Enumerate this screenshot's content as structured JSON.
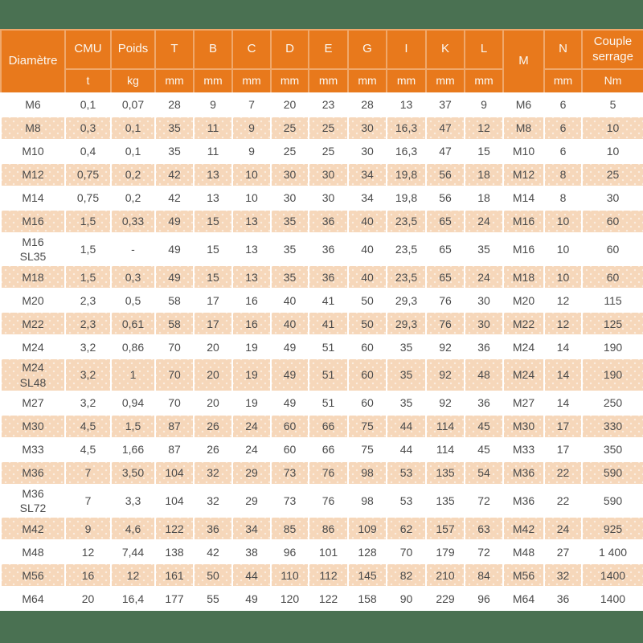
{
  "theme": {
    "band_bg": "#4A7152",
    "header_bg": "#E8791C",
    "header_divider": "#F0A86B",
    "header_text": "#FBF7F1",
    "row_bg": "#FFFFFF",
    "row_alt_bg": "#F6D7BA",
    "body_text": "#4A4A4A"
  },
  "table": {
    "columns": [
      {
        "label": "Diamètre",
        "unit": ""
      },
      {
        "label": "CMU",
        "unit": "t"
      },
      {
        "label": "Poids",
        "unit": "kg"
      },
      {
        "label": "T",
        "unit": "mm"
      },
      {
        "label": "B",
        "unit": "mm"
      },
      {
        "label": "C",
        "unit": "mm"
      },
      {
        "label": "D",
        "unit": "mm"
      },
      {
        "label": "E",
        "unit": "mm"
      },
      {
        "label": "G",
        "unit": "mm"
      },
      {
        "label": "I",
        "unit": "mm"
      },
      {
        "label": "K",
        "unit": "mm"
      },
      {
        "label": "L",
        "unit": "mm"
      },
      {
        "label": "M",
        "unit": ""
      },
      {
        "label": "N",
        "unit": "mm"
      },
      {
        "label": "Couple serrage",
        "unit": "Nm"
      }
    ],
    "rows": [
      [
        "M6",
        "0,1",
        "0,07",
        "28",
        "9",
        "7",
        "20",
        "23",
        "28",
        "13",
        "37",
        "9",
        "M6",
        "6",
        "5"
      ],
      [
        "M8",
        "0,3",
        "0,1",
        "35",
        "11",
        "9",
        "25",
        "25",
        "30",
        "16,3",
        "47",
        "12",
        "M8",
        "6",
        "10"
      ],
      [
        "M10",
        "0,4",
        "0,1",
        "35",
        "11",
        "9",
        "25",
        "25",
        "30",
        "16,3",
        "47",
        "15",
        "M10",
        "6",
        "10"
      ],
      [
        "M12",
        "0,75",
        "0,2",
        "42",
        "13",
        "10",
        "30",
        "30",
        "34",
        "19,8",
        "56",
        "18",
        "M12",
        "8",
        "25"
      ],
      [
        "M14",
        "0,75",
        "0,2",
        "42",
        "13",
        "10",
        "30",
        "30",
        "34",
        "19,8",
        "56",
        "18",
        "M14",
        "8",
        "30"
      ],
      [
        "M16",
        "1,5",
        "0,33",
        "49",
        "15",
        "13",
        "35",
        "36",
        "40",
        "23,5",
        "65",
        "24",
        "M16",
        "10",
        "60"
      ],
      [
        "M16\nSL35",
        "1,5",
        "-",
        "49",
        "15",
        "13",
        "35",
        "36",
        "40",
        "23,5",
        "65",
        "35",
        "M16",
        "10",
        "60"
      ],
      [
        "M18",
        "1,5",
        "0,3",
        "49",
        "15",
        "13",
        "35",
        "36",
        "40",
        "23,5",
        "65",
        "24",
        "M18",
        "10",
        "60"
      ],
      [
        "M20",
        "2,3",
        "0,5",
        "58",
        "17",
        "16",
        "40",
        "41",
        "50",
        "29,3",
        "76",
        "30",
        "M20",
        "12",
        "115"
      ],
      [
        "M22",
        "2,3",
        "0,61",
        "58",
        "17",
        "16",
        "40",
        "41",
        "50",
        "29,3",
        "76",
        "30",
        "M22",
        "12",
        "125"
      ],
      [
        "M24",
        "3,2",
        "0,86",
        "70",
        "20",
        "19",
        "49",
        "51",
        "60",
        "35",
        "92",
        "36",
        "M24",
        "14",
        "190"
      ],
      [
        "M24\nSL48",
        "3,2",
        "1",
        "70",
        "20",
        "19",
        "49",
        "51",
        "60",
        "35",
        "92",
        "48",
        "M24",
        "14",
        "190"
      ],
      [
        "M27",
        "3,2",
        "0,94",
        "70",
        "20",
        "19",
        "49",
        "51",
        "60",
        "35",
        "92",
        "36",
        "M27",
        "14",
        "250"
      ],
      [
        "M30",
        "4,5",
        "1,5",
        "87",
        "26",
        "24",
        "60",
        "66",
        "75",
        "44",
        "114",
        "45",
        "M30",
        "17",
        "330"
      ],
      [
        "M33",
        "4,5",
        "1,66",
        "87",
        "26",
        "24",
        "60",
        "66",
        "75",
        "44",
        "114",
        "45",
        "M33",
        "17",
        "350"
      ],
      [
        "M36",
        "7",
        "3,50",
        "104",
        "32",
        "29",
        "73",
        "76",
        "98",
        "53",
        "135",
        "54",
        "M36",
        "22",
        "590"
      ],
      [
        "M36\nSL72",
        "7",
        "3,3",
        "104",
        "32",
        "29",
        "73",
        "76",
        "98",
        "53",
        "135",
        "72",
        "M36",
        "22",
        "590"
      ],
      [
        "M42",
        "9",
        "4,6",
        "122",
        "36",
        "34",
        "85",
        "86",
        "109",
        "62",
        "157",
        "63",
        "M42",
        "24",
        "925"
      ],
      [
        "M48",
        "12",
        "7,44",
        "138",
        "42",
        "38",
        "96",
        "101",
        "128",
        "70",
        "179",
        "72",
        "M48",
        "27",
        "1 400"
      ],
      [
        "M56",
        "16",
        "12",
        "161",
        "50",
        "44",
        "110",
        "112",
        "145",
        "82",
        "210",
        "84",
        "M56",
        "32",
        "1400"
      ],
      [
        "M64",
        "20",
        "16,4",
        "177",
        "55",
        "49",
        "120",
        "122",
        "158",
        "90",
        "229",
        "96",
        "M64",
        "36",
        "1400"
      ]
    ]
  }
}
